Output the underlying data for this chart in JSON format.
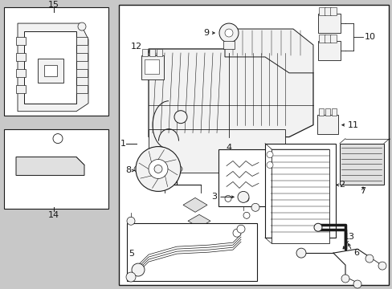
{
  "bg_outer": "#c8c8c8",
  "bg_inner": "#ffffff",
  "lc": "#1a1a1a",
  "gray_fill": "#e0e0e0",
  "light_fill": "#f2f2f2",
  "mid_gray": "#aaaaaa"
}
